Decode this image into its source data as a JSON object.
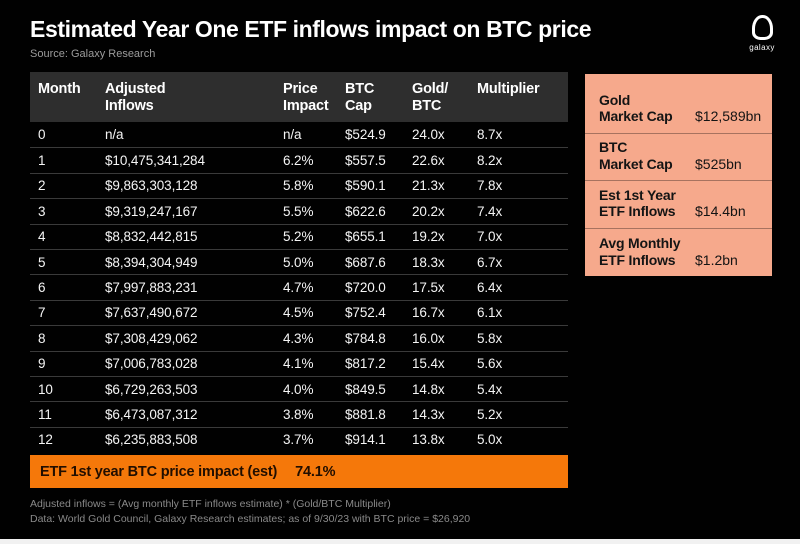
{
  "header": {
    "title": "Estimated Year One ETF inflows impact on BTC price",
    "source": "Source: Galaxy Research",
    "logo_label": "galaxy"
  },
  "table": {
    "columns": [
      {
        "line1": "Month",
        "line2": "",
        "slug": "month"
      },
      {
        "line1": "Adjusted",
        "line2": "Inflows",
        "slug": "adjusted-inflows"
      },
      {
        "line1": "Price",
        "line2": "Impact",
        "slug": "price-impact"
      },
      {
        "line1": "BTC",
        "line2": "Cap",
        "slug": "btc-cap"
      },
      {
        "line1": "Gold/",
        "line2": "BTC",
        "slug": "gold-btc"
      },
      {
        "line1": "Multiplier",
        "line2": "",
        "slug": "multiplier"
      }
    ],
    "rows": [
      [
        "0",
        "n/a",
        "n/a",
        "$524.9",
        "24.0x",
        "8.7x"
      ],
      [
        "1",
        "$10,475,341,284",
        "6.2%",
        "$557.5",
        "22.6x",
        "8.2x"
      ],
      [
        "2",
        "$9,863,303,128",
        "5.8%",
        "$590.1",
        "21.3x",
        "7.8x"
      ],
      [
        "3",
        "$9,319,247,167",
        "5.5%",
        "$622.6",
        "20.2x",
        "7.4x"
      ],
      [
        "4",
        "$8,832,442,815",
        "5.2%",
        "$655.1",
        "19.2x",
        "7.0x"
      ],
      [
        "5",
        "$8,394,304,949",
        "5.0%",
        "$687.6",
        "18.3x",
        "6.7x"
      ],
      [
        "6",
        "$7,997,883,231",
        "4.7%",
        "$720.0",
        "17.5x",
        "6.4x"
      ],
      [
        "7",
        "$7,637,490,672",
        "4.5%",
        "$752.4",
        "16.7x",
        "6.1x"
      ],
      [
        "8",
        "$7,308,429,062",
        "4.3%",
        "$784.8",
        "16.0x",
        "5.8x"
      ],
      [
        "9",
        "$7,006,783,028",
        "4.1%",
        "$817.2",
        "15.4x",
        "5.6x"
      ],
      [
        "10",
        "$6,729,263,503",
        "4.0%",
        "$849.5",
        "14.8x",
        "5.4x"
      ],
      [
        "11",
        "$6,473,087,312",
        "3.8%",
        "$881.8",
        "14.3x",
        "5.2x"
      ],
      [
        "12",
        "$6,235,883,508",
        "3.7%",
        "$914.1",
        "13.8x",
        "5.0x"
      ]
    ],
    "summary": {
      "label": "ETF 1st year BTC price impact (est)",
      "value": "74.1%"
    }
  },
  "sidebar": {
    "items": [
      {
        "label_line1": "Gold",
        "label_line2": "Market Cap",
        "value": "$12,589bn"
      },
      {
        "label_line1": "BTC",
        "label_line2": "Market Cap",
        "value": "$525bn"
      },
      {
        "label_line1": "Est 1st Year",
        "label_line2": "ETF Inflows",
        "value": "$14.4bn"
      },
      {
        "label_line1": "Avg Monthly",
        "label_line2": "ETF Inflows",
        "value": "$1.2bn"
      }
    ]
  },
  "footnotes": [
    "Adjusted inflows = (Avg monthly ETF inflows estimate) * (Gold/BTC Multiplier)",
    "Data: World Gold Council, Galaxy Research estimates; as of 9/30/23 with BTC price = $26,920"
  ],
  "colors": {
    "background": "#010101",
    "header_gray": "#2E2E2E",
    "accent_orange": "#F5780A",
    "panel_salmon": "#F6A98C"
  },
  "chart_data": {
    "type": "table",
    "title": "Estimated Year One ETF inflows impact on BTC price",
    "source": "Galaxy Research",
    "columns": [
      "Month",
      "Adjusted Inflows",
      "Price Impact",
      "BTC Cap",
      "Gold/BTC",
      "Multiplier"
    ],
    "rows": [
      [
        0,
        null,
        null,
        524.9,
        24.0,
        8.7
      ],
      [
        1,
        10475341284,
        6.2,
        557.5,
        22.6,
        8.2
      ],
      [
        2,
        9863303128,
        5.8,
        590.1,
        21.3,
        7.8
      ],
      [
        3,
        9319247167,
        5.5,
        622.6,
        20.2,
        7.4
      ],
      [
        4,
        8832442815,
        5.2,
        655.1,
        19.2,
        7.0
      ],
      [
        5,
        8394304949,
        5.0,
        687.6,
        18.3,
        6.7
      ],
      [
        6,
        7997883231,
        4.7,
        720.0,
        17.5,
        6.4
      ],
      [
        7,
        7637490672,
        4.5,
        752.4,
        16.7,
        6.1
      ],
      [
        8,
        7308429062,
        4.3,
        784.8,
        16.0,
        5.8
      ],
      [
        9,
        7006783028,
        4.1,
        817.2,
        15.4,
        5.6
      ],
      [
        10,
        6729263503,
        4.0,
        849.5,
        14.8,
        5.4
      ],
      [
        11,
        6473087312,
        3.8,
        881.8,
        14.3,
        5.2
      ],
      [
        12,
        6235883508,
        3.7,
        914.1,
        13.8,
        5.0
      ]
    ],
    "summary": {
      "label": "ETF 1st year BTC price impact (est)",
      "value_pct": 74.1
    },
    "side_stats": [
      {
        "label": "Gold Market Cap",
        "value": "$12,589bn"
      },
      {
        "label": "BTC Market Cap",
        "value": "$525bn"
      },
      {
        "label": "Est 1st Year ETF Inflows",
        "value": "$14.4bn"
      },
      {
        "label": "Avg Monthly ETF Inflows",
        "value": "$1.2bn"
      }
    ],
    "notes": [
      "Adjusted inflows = (Avg monthly ETF inflows estimate) * (Gold/BTC Multiplier)",
      "Data: World Gold Council, Galaxy Research estimates; as of 9/30/23 with BTC price = $26,920"
    ]
  }
}
